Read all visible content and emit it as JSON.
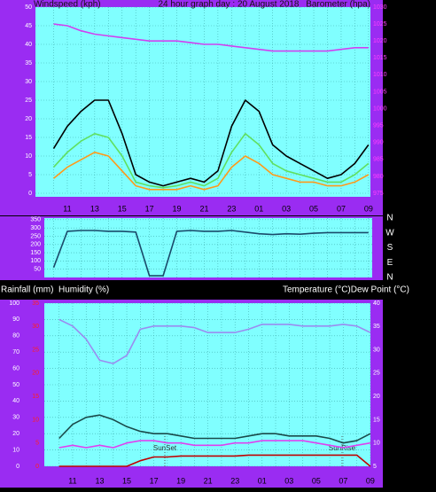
{
  "chart_data": [
    {
      "type": "line",
      "title": "24 hour graph day : 20 August 2018",
      "y_label": "Windspeed (kph)",
      "y2_label": "Barometer (hpa)",
      "categories": [
        null,
        "11",
        null,
        "13",
        null,
        "15",
        null,
        "17",
        null,
        "19",
        null,
        "21",
        null,
        "23",
        null,
        "01",
        null,
        "03",
        null,
        "05",
        null,
        "07",
        null,
        "09"
      ],
      "ylim": [
        0,
        50
      ],
      "yticks": [
        0,
        5,
        10,
        15,
        20,
        25,
        30,
        35,
        40,
        45,
        50
      ],
      "y2lim": [
        975,
        1030
      ],
      "y2ticks": [
        975,
        980,
        985,
        990,
        995,
        1000,
        1005,
        1010,
        1015,
        1020,
        1025,
        1030
      ],
      "grid": true,
      "series": [
        {
          "color": "#ff9a1a",
          "values": [
            4,
            7,
            9,
            11,
            10,
            6,
            2,
            1,
            1,
            1,
            2,
            1,
            2,
            7,
            10,
            8,
            5,
            4,
            3,
            3,
            2,
            2,
            3,
            5
          ]
        },
        {
          "color": "#60e060",
          "values": [
            7,
            11,
            14,
            16,
            15,
            10,
            3,
            2,
            1.5,
            2,
            3,
            2,
            4,
            11,
            16,
            13,
            8,
            6,
            5,
            4,
            3,
            3,
            5,
            8
          ]
        },
        {
          "color": "#000000",
          "values": [
            12,
            18,
            22,
            25,
            25,
            16,
            5,
            3,
            2,
            3,
            4,
            3,
            6,
            18,
            25,
            22,
            13,
            10,
            8,
            6,
            4,
            5,
            8,
            13
          ]
        },
        {
          "color": "#d040f0",
          "axis": "y2",
          "values": [
            1025,
            1024.5,
            1023,
            1022,
            1021.5,
            1021,
            1020.5,
            1020,
            1020,
            1020,
            1019.5,
            1019,
            1019,
            1018.5,
            1018,
            1017.5,
            1017,
            1017,
            1017,
            1017,
            1017,
            1017.5,
            1018,
            1018
          ]
        }
      ]
    },
    {
      "type": "line",
      "categories": [
        null,
        "11",
        null,
        "13",
        null,
        "15",
        null,
        "17",
        null,
        "19",
        null,
        "21",
        null,
        "23",
        null,
        "01",
        null,
        "03",
        null,
        "05",
        null,
        "07",
        null,
        "09"
      ],
      "ylim": [
        0,
        360
      ],
      "yticks": [
        50,
        100,
        150,
        200,
        250,
        300,
        350
      ],
      "y2lim": [
        0,
        360
      ],
      "y2ticks": [
        {
          "value": 360,
          "label": "N"
        },
        {
          "value": 270,
          "label": "W"
        },
        {
          "value": 180,
          "label": "S"
        },
        {
          "value": 90,
          "label": "E"
        },
        {
          "value": 0,
          "label": "N"
        }
      ],
      "grid": true,
      "series": [
        {
          "color": "#1a4a6a",
          "values": [
            60,
            280,
            285,
            285,
            280,
            280,
            275,
            10,
            10,
            280,
            285,
            280,
            280,
            285,
            275,
            265,
            260,
            265,
            262,
            268,
            272,
            272,
            272,
            272
          ]
        }
      ]
    },
    {
      "type": "line",
      "y3_label": "Rainfall (mm)",
      "y_label": "Humidity (%)",
      "y2_label": "Temperature (°C)Dew Point (°C)",
      "categories": [
        null,
        "11",
        null,
        "13",
        null,
        "15",
        null,
        "17",
        null,
        "19",
        null,
        "21",
        null,
        "23",
        null,
        "01",
        null,
        "03",
        null,
        "05",
        null,
        "07",
        null,
        "09"
      ],
      "ylim": [
        0,
        100
      ],
      "yticks": [
        0,
        10,
        20,
        30,
        40,
        50,
        60,
        70,
        80,
        90,
        100
      ],
      "y2lim": [
        5,
        40
      ],
      "y2ticks": [
        5,
        10,
        15,
        20,
        25,
        30,
        35,
        40
      ],
      "y3lim": [
        0,
        35
      ],
      "y3ticks": [
        0,
        5,
        10,
        15,
        20,
        25,
        30,
        35
      ],
      "grid": true,
      "annotations": [
        {
          "text": "SunSet"
        },
        {
          "text": "SunRise"
        }
      ],
      "series": [
        {
          "color": "#9a8cf0",
          "values": [
            90,
            86,
            78,
            65,
            63,
            68,
            84,
            86,
            86,
            86,
            85,
            82,
            82,
            82,
            84,
            87,
            87,
            87,
            86,
            86,
            86,
            87,
            86,
            82
          ]
        },
        {
          "color": "#1a4a4a",
          "axis": "y2",
          "values": [
            11,
            14,
            15.5,
            16,
            15,
            13.5,
            12.5,
            12,
            12,
            11.5,
            11,
            11,
            11,
            11,
            11.5,
            12,
            12,
            11.5,
            11.5,
            11.5,
            11,
            10,
            10.5,
            12
          ]
        },
        {
          "color": "#e040f0",
          "axis": "y2",
          "values": [
            9,
            9.5,
            9,
            9.5,
            9,
            10,
            10.5,
            10.5,
            10,
            10,
            9.5,
            9.5,
            9.5,
            10,
            10,
            10.5,
            10.5,
            10.5,
            10.5,
            10,
            9.5,
            9,
            9.5,
            10
          ]
        },
        {
          "color": "#c00000",
          "axis": "y3",
          "values": [
            0,
            0,
            0,
            0,
            0,
            0,
            1.2,
            2,
            2,
            2.2,
            2.2,
            2.2,
            2.2,
            2.2,
            2.4,
            2.4,
            2.4,
            2.4,
            2.4,
            2.4,
            2.4,
            2.4,
            2.4,
            0
          ]
        }
      ]
    }
  ]
}
